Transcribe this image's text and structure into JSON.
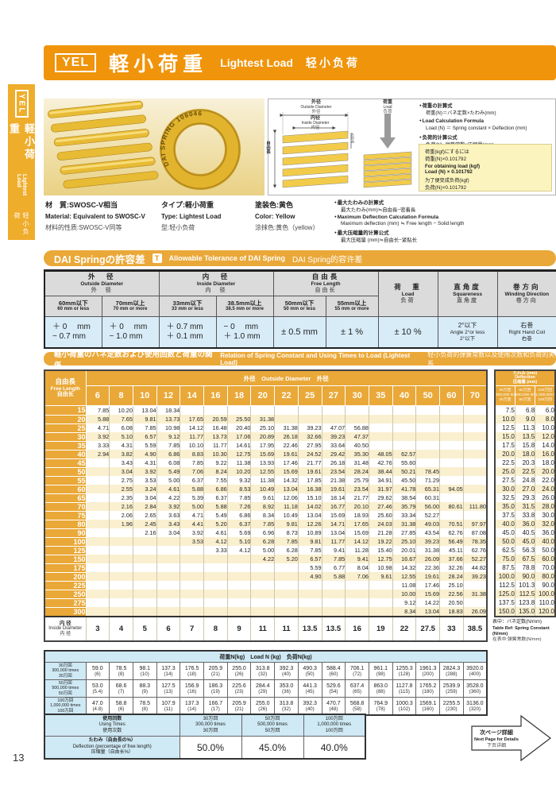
{
  "page": {
    "number": "13"
  },
  "colors": {
    "banner_orange": "#F0940B",
    "amber": "#E9A838",
    "cream_stripe": "#FAF0D0",
    "light_blue": "#CFE9F5",
    "pale_blue": "#D8ECF8",
    "note_yellow": "#FBF4BE"
  },
  "sidebar": {
    "code": "YEL",
    "ja": "軽小荷重",
    "en": "Lightest Load",
    "zh": "轻小负荷"
  },
  "banner": {
    "code": "YEL",
    "ja": "軽小荷重",
    "en": "Lightest Load",
    "zh": "轻小负荷"
  },
  "photo": {
    "ring_text": "DAI SPRING 106046"
  },
  "diagram": {
    "outside_diameter": {
      "ja": "外径",
      "en": "Outside Diameter",
      "zh": "外径"
    },
    "inside_diameter": {
      "ja": "内径",
      "en": "Inside Diameter",
      "zh": "内径"
    },
    "free_length": {
      "ja": "自由長",
      "en": "Free Length",
      "zh": "自由长"
    },
    "deflection": {
      "ja": "たわみ",
      "en": "Deflection",
      "zh": "压缩量"
    },
    "load": {
      "ja": "荷重",
      "en": "Load",
      "zh": "负荷"
    }
  },
  "formulas": {
    "load": [
      {
        "l1": "荷重の計算式",
        "l2": "荷重(N)＝バネ定数×たわみ(mm)"
      },
      {
        "l1": "Load Calculation Formula",
        "l2": "Load (N) ＝ Spring constant × Deflection (mm)"
      },
      {
        "l1": "负荷的计算公式",
        "l2": "负荷(N)=弹簧常数×压缩量(mm)"
      }
    ],
    "note": [
      {
        "l1": "荷重(kgf)にするには",
        "l2": "荷重(N)×0.101792"
      },
      {
        "l1": "For obtaining load (kgf)",
        "l2": "Load (N) × 0.101792"
      },
      {
        "l1": "为了便变成负荷(kgf)",
        "l2": "负荷(N)×0.101792"
      }
    ],
    "max_deflection": [
      {
        "l1": "最大たわみの計算式",
        "l2": "最大たわみ(mm)≒自由長−密着長"
      },
      {
        "l1": "Maximum Deflection Calculation Formula",
        "l2": "Maximum deflection (mm) ≒ Free length − Solid length"
      },
      {
        "l1": "最大压缩量的计算公式",
        "l2": "最大压缩量 (mm)≒自由长−紧贴长"
      }
    ]
  },
  "material": [
    {
      "ja": "材　質:SWOSC-V相当",
      "en": "Material: Equivalent to SWOSC-V",
      "zh": "材料的性质:SWOSC-V同等"
    },
    {
      "ja": "タイプ:軽小荷重",
      "en": "Type: Lightest Load",
      "zh": "型:轻小负荷"
    },
    {
      "ja": "塗装色:黄色",
      "en": "Color: Yellow",
      "zh": "涂抹色:黄色（yellow）"
    }
  ],
  "tolerance": {
    "title_ja": "DAI Springの許容差",
    "title_icon": "T",
    "title_en": "Allowable Tolerance of DAI Spring",
    "title_zh": "DAI Spring的容许差",
    "od": {
      "ja": "外　径",
      "en": "Outside Diameter",
      "zh": "外　径"
    },
    "id": {
      "ja": "内　径",
      "en": "Inside Diameter",
      "zh": "内　径"
    },
    "fl": {
      "ja": "自由長",
      "en": "Free Length",
      "zh": "自由长"
    },
    "load": {
      "ja": "荷　重",
      "en": "Load",
      "zh": "负荷"
    },
    "sq": {
      "ja": "直角度",
      "en": "Squareness",
      "zh": "直角度"
    },
    "wind": {
      "ja": "巻方向",
      "en": "Winding Direction",
      "zh": "卷方向"
    },
    "sub": [
      {
        "ja": "60mm以下",
        "en": "60 mm or less"
      },
      {
        "ja": "70mm以上",
        "en": "70 mm or more"
      },
      {
        "ja": "33mm以下",
        "en": "33 mm or less"
      },
      {
        "ja": "38.5mm以上",
        "en": "38.5 mm or more"
      },
      {
        "ja": "50mm以下",
        "en": "50 mm or less"
      },
      {
        "ja": "55mm以上",
        "en": "55 mm or more"
      }
    ],
    "vals": {
      "od1a": "＋ 0　 mm",
      "od1b": "− 0.7 mm",
      "od2a": "＋ 0　 mm",
      "od2b": "− 1.0 mm",
      "id1a": "＋ 0.7 mm",
      "id1b": "＋ 0.1 mm",
      "id2a": "− 0　 mm",
      "id2b": "＋ 1.0 mm",
      "fl1": "± 0.5 mm",
      "fl2": "± 1 %",
      "load": "± 10 %",
      "sq1": "2°以下",
      "sq2": "Angle 2°or less",
      "sq3": "2°以下",
      "wind1": "右巻",
      "wind2": "Right Hand Coil",
      "wind3": "右巻"
    }
  },
  "cycles": [
    {
      "ja": "30万回",
      "en": "300,000 times",
      "zh": "30万回"
    },
    {
      "ja": "50万回",
      "en": "500,000 times",
      "zh": "50万回"
    },
    {
      "ja": "100万回",
      "en": "1,000,000 times",
      "zh": "100万回"
    }
  ],
  "spring_table": {
    "title": {
      "ja": "軽小荷重のバネ定数および使用回数と荷重の関係",
      "en": "Relation of Spring Constant and Using Times to Load (Lightest Load)",
      "zh": "轻小负荷的弹簧常数以及使用次数和负荷的关系"
    },
    "free_length_header": {
      "ja": "自由長",
      "en": "Free Length",
      "zh": "自由长"
    },
    "od_header": {
      "ja": "外径",
      "en": "Outside Diameter",
      "zh": "外径"
    },
    "od_columns": [
      "6",
      "8",
      "10",
      "12",
      "14",
      "16",
      "18",
      "20",
      "22",
      "25",
      "27",
      "30",
      "35",
      "40",
      "50",
      "60",
      "70"
    ],
    "deflection_header": {
      "ja": "たわみ (mm)",
      "en": "Deflection",
      "zh": "压缩量 (mm)"
    },
    "rows": [
      {
        "fl": "15",
        "k": [
          "7.85",
          "10.20",
          "13.04",
          "18.34",
          "",
          "",
          "",
          "",
          "",
          "",
          "",
          "",
          "",
          "",
          "",
          "",
          ""
        ],
        "d": [
          "7.5",
          "6.8",
          "6.0"
        ]
      },
      {
        "fl": "20",
        "k": [
          "5.88",
          "7.65",
          "9.81",
          "13.73",
          "17.65",
          "20.59",
          "25.50",
          "31.38",
          "",
          "",
          "",
          "",
          "",
          "",
          "",
          "",
          ""
        ],
        "d": [
          "10.0",
          "9.0",
          "8.0"
        ]
      },
      {
        "fl": "25",
        "k": [
          "4.71",
          "6.08",
          "7.85",
          "10.98",
          "14.12",
          "16.48",
          "20.40",
          "25.10",
          "31.38",
          "39.23",
          "47.07",
          "56.88",
          "",
          "",
          "",
          "",
          ""
        ],
        "d": [
          "12.5",
          "11.3",
          "10.0"
        ]
      },
      {
        "fl": "30",
        "k": [
          "3.92",
          "5.10",
          "6.57",
          "9.12",
          "11.77",
          "13.73",
          "17.06",
          "20.89",
          "26.18",
          "32.66",
          "39.23",
          "47.37",
          "",
          "",
          "",
          "",
          ""
        ],
        "d": [
          "15.0",
          "13.5",
          "12.0"
        ]
      },
      {
        "fl": "35",
        "k": [
          "3.33",
          "4.31",
          "5.59",
          "7.85",
          "10.10",
          "11.77",
          "14.61",
          "17.95",
          "22.46",
          "27.95",
          "33.64",
          "40.50",
          "",
          "",
          "",
          "",
          ""
        ],
        "d": [
          "17.5",
          "15.8",
          "14.0"
        ]
      },
      {
        "fl": "40",
        "k": [
          "2.94",
          "3.82",
          "4.90",
          "6.86",
          "8.83",
          "10.30",
          "12.75",
          "15.69",
          "19.61",
          "24.52",
          "29.42",
          "35.30",
          "48.05",
          "62.57",
          "",
          "",
          ""
        ],
        "d": [
          "20.0",
          "18.0",
          "16.0"
        ]
      },
      {
        "fl": "45",
        "k": [
          "",
          "3.43",
          "4.31",
          "6.08",
          "7.85",
          "9.22",
          "11.38",
          "13.93",
          "17.46",
          "21.77",
          "26.18",
          "31.48",
          "42.76",
          "55.60",
          "",
          "",
          ""
        ],
        "d": [
          "22.5",
          "20.3",
          "18.0"
        ]
      },
      {
        "fl": "50",
        "k": [
          "",
          "3.04",
          "3.92",
          "5.49",
          "7.06",
          "8.24",
          "10.20",
          "12.55",
          "15.69",
          "19.61",
          "23.54",
          "28.24",
          "38.44",
          "50.21",
          "78.45",
          "",
          ""
        ],
        "d": [
          "25.0",
          "22.5",
          "20.0"
        ]
      },
      {
        "fl": "55",
        "k": [
          "",
          "2.75",
          "3.53",
          "5.00",
          "6.37",
          "7.55",
          "9.32",
          "11.38",
          "14.32",
          "17.85",
          "21.38",
          "25.79",
          "34.91",
          "45.50",
          "71.29",
          "",
          ""
        ],
        "d": [
          "27.5",
          "24.8",
          "22.0"
        ]
      },
      {
        "fl": "60",
        "k": [
          "",
          "2.55",
          "3.24",
          "4.61",
          "5.88",
          "6.86",
          "8.53",
          "10.49",
          "13.04",
          "16.38",
          "19.61",
          "23.54",
          "31.97",
          "41.78",
          "65.31",
          "94.05",
          ""
        ],
        "d": [
          "30.0",
          "27.0",
          "24.0"
        ]
      },
      {
        "fl": "65",
        "k": [
          "",
          "2.35",
          "3.04",
          "4.22",
          "5.39",
          "6.37",
          "7.85",
          "9.61",
          "12.06",
          "15.10",
          "18.14",
          "21.77",
          "29.62",
          "38.54",
          "60.31",
          "",
          ""
        ],
        "d": [
          "32.5",
          "29.3",
          "26.0"
        ]
      },
      {
        "fl": "70",
        "k": [
          "",
          "2.16",
          "2.84",
          "3.92",
          "5.00",
          "5.88",
          "7.26",
          "8.92",
          "11.18",
          "14.02",
          "16.77",
          "20.10",
          "27.46",
          "35.79",
          "56.00",
          "80.61",
          "111.80"
        ],
        "d": [
          "35.0",
          "31.5",
          "28.0"
        ]
      },
      {
        "fl": "75",
        "k": [
          "",
          "2.06",
          "2.65",
          "3.63",
          "4.71",
          "5.49",
          "6.86",
          "8.34",
          "10.49",
          "13.04",
          "15.69",
          "18.93",
          "25.60",
          "33.34",
          "52.27",
          "",
          ""
        ],
        "d": [
          "37.5",
          "33.8",
          "30.0"
        ]
      },
      {
        "fl": "80",
        "k": [
          "",
          "1.96",
          "2.45",
          "3.43",
          "4.41",
          "5.20",
          "6.37",
          "7.85",
          "9.81",
          "12.26",
          "14.71",
          "17.65",
          "24.03",
          "31.38",
          "49.03",
          "70.51",
          "97.97"
        ],
        "d": [
          "40.0",
          "36.0",
          "32.0"
        ]
      },
      {
        "fl": "90",
        "k": [
          "",
          "",
          "2.16",
          "3.04",
          "3.92",
          "4.61",
          "5.69",
          "6.96",
          "8.73",
          "10.89",
          "13.04",
          "15.69",
          "21.28",
          "27.85",
          "43.54",
          "62.76",
          "87.08"
        ],
        "d": [
          "45.0",
          "40.5",
          "36.0"
        ]
      },
      {
        "fl": "100",
        "k": [
          "",
          "",
          "",
          "",
          "3.53",
          "4.12",
          "5.10",
          "6.28",
          "7.85",
          "9.81",
          "11.77",
          "14.12",
          "19.22",
          "25.10",
          "39.23",
          "56.49",
          "78.35"
        ],
        "d": [
          "50.0",
          "45.0",
          "40.0"
        ]
      },
      {
        "fl": "125",
        "k": [
          "",
          "",
          "",
          "",
          "",
          "3.33",
          "4.12",
          "5.00",
          "6.28",
          "7.85",
          "9.41",
          "11.28",
          "15.40",
          "20.01",
          "31.38",
          "45.11",
          "62.76"
        ],
        "d": [
          "62.5",
          "56.3",
          "50.0"
        ]
      },
      {
        "fl": "150",
        "k": [
          "",
          "",
          "",
          "",
          "",
          "",
          "",
          "4.22",
          "5.20",
          "6.57",
          "7.85",
          "9.41",
          "12.75",
          "16.67",
          "26.09",
          "37.66",
          "52.27"
        ],
        "d": [
          "75.0",
          "67.5",
          "60.0"
        ]
      },
      {
        "fl": "175",
        "k": [
          "",
          "",
          "",
          "",
          "",
          "",
          "",
          "",
          "",
          "5.59",
          "6.77",
          "8.04",
          "10.98",
          "14.32",
          "22.36",
          "32.26",
          "44.82"
        ],
        "d": [
          "87.5",
          "78.8",
          "70.0"
        ]
      },
      {
        "fl": "200",
        "k": [
          "",
          "",
          "",
          "",
          "",
          "",
          "",
          "",
          "",
          "4.90",
          "5.88",
          "7.06",
          "9.61",
          "12.55",
          "19.61",
          "28.24",
          "39.23"
        ],
        "d": [
          "100.0",
          "90.0",
          "80.0"
        ]
      },
      {
        "fl": "225",
        "k": [
          "",
          "",
          "",
          "",
          "",
          "",
          "",
          "",
          "",
          "",
          "",
          "",
          "",
          "11.08",
          "17.46",
          "25.10",
          ""
        ],
        "d": [
          "112.5",
          "101.3",
          "90.0"
        ]
      },
      {
        "fl": "250",
        "k": [
          "",
          "",
          "",
          "",
          "",
          "",
          "",
          "",
          "",
          "",
          "",
          "",
          "",
          "10.00",
          "15.69",
          "22.56",
          "31.38"
        ],
        "d": [
          "125.0",
          "112.5",
          "100.0"
        ]
      },
      {
        "fl": "275",
        "k": [
          "",
          "",
          "",
          "",
          "",
          "",
          "",
          "",
          "",
          "",
          "",
          "",
          "",
          "9.12",
          "14.22",
          "20.50",
          ""
        ],
        "d": [
          "137.5",
          "123.8",
          "110.0"
        ]
      },
      {
        "fl": "300",
        "k": [
          "",
          "",
          "",
          "",
          "",
          "",
          "",
          "",
          "",
          "",
          "",
          "",
          "",
          "8.34",
          "13.04",
          "18.83",
          "26.09"
        ],
        "d": [
          "150.0",
          "135.0",
          "120.0"
        ]
      }
    ],
    "id_row": {
      "ja": "内 径",
      "en": "Inside Diameter",
      "zh": "内 径",
      "values": [
        "3",
        "4",
        "5",
        "6",
        "7",
        "8",
        "9",
        "11",
        "11",
        "13.5",
        "13.5",
        "16",
        "19",
        "22",
        "27.5",
        "33",
        "38.5"
      ]
    },
    "note": {
      "l1": "表中：バネ定数(N/mm)",
      "l2": "Table Ref: Spring Constant (N/mm)",
      "l3": "在表中:弹簧常数(N/mm)"
    }
  },
  "load_table": {
    "header": "荷重N(kg)　Load N (kg)　负荷N(kg)",
    "rows": [
      {
        "n": [
          "59.0",
          "78.5",
          "98.1",
          "137.3",
          "176.5",
          "205.9",
          "255.0",
          "313.8",
          "392.3",
          "490.3",
          "588.4",
          "706.1",
          "961.1",
          "1255.3",
          "1961.3",
          "2824.3",
          "3920.0"
        ],
        "kg": [
          "6",
          "8",
          "10",
          "14",
          "18",
          "21",
          "26",
          "32",
          "40",
          "50",
          "60",
          "72",
          "98",
          "128",
          "200",
          "288",
          "400"
        ]
      },
      {
        "n": [
          "53.0",
          "68.6",
          "88.3",
          "127.5",
          "156.9",
          "186.3",
          "225.6",
          "284.4",
          "353.0",
          "441.3",
          "529.6",
          "637.4",
          "863.0",
          "1127.8",
          "1765.2",
          "2539.9",
          "3528.0"
        ],
        "kg": [
          "5.4",
          "7",
          "9",
          "13",
          "16",
          "19",
          "23",
          "29",
          "36",
          "45",
          "54",
          "65",
          "88",
          "115",
          "180",
          "259",
          "360"
        ]
      },
      {
        "n": [
          "47.0",
          "58.8",
          "78.5",
          "107.9",
          "137.3",
          "166.7",
          "205.9",
          "255.0",
          "313.8",
          "392.3",
          "470.7",
          "568.8",
          "764.9",
          "1000.3",
          "1569.1",
          "2255.5",
          "3136.0"
        ],
        "kg": [
          "4.8",
          "6",
          "8",
          "11",
          "14",
          "17",
          "21",
          "26",
          "32",
          "40",
          "48",
          "58",
          "78",
          "102",
          "160",
          "230",
          "320"
        ]
      }
    ]
  },
  "usage_table": {
    "label1": {
      "ja": "使用回数",
      "en": "Using Times",
      "zh": "使用次数"
    },
    "label2": {
      "ja": "たわみ（自由長の%）",
      "en": "Deflection (percentage of free length)",
      "zh": "压缩量（自由长%）"
    },
    "percents": [
      "50.0%",
      "45.0%",
      "40.0%"
    ]
  },
  "next_page": {
    "ja": "次ページ詳細",
    "en": "Next Page for Details",
    "zh": "下页详细"
  }
}
